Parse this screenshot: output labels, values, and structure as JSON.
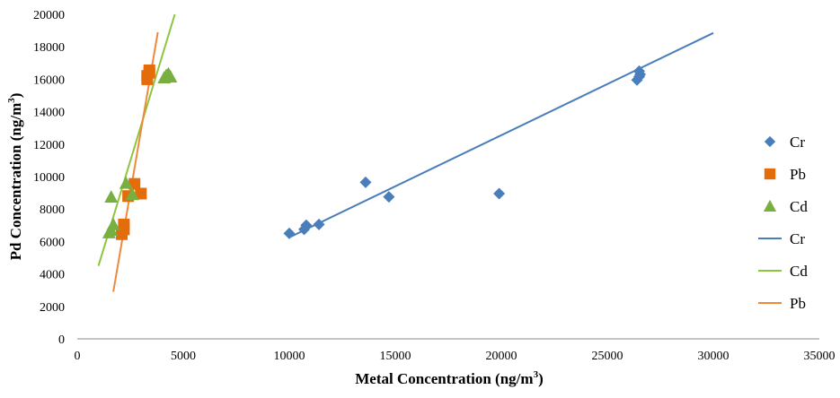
{
  "chart_data": {
    "type": "scatter",
    "xlabel": "Metal Concentration (ng/m",
    "xlabel_sup": "3",
    "xlabel_end": ")",
    "ylabel": "Pd Concentration (ng/m",
    "ylabel_sup": "3",
    "ylabel_end": ")",
    "xlim": [
      0,
      35000
    ],
    "ylim": [
      0,
      20000
    ],
    "xticks": [
      0,
      5000,
      10000,
      15000,
      20000,
      25000,
      30000,
      35000
    ],
    "yticks": [
      0,
      2000,
      4000,
      6000,
      8000,
      10000,
      12000,
      14000,
      16000,
      18000,
      20000
    ],
    "grid": false,
    "legend_position": "right",
    "series": [
      {
        "name": "Cr",
        "marker": "diamond",
        "color": "#4a7ebb",
        "points": [
          [
            10000,
            6500
          ],
          [
            10700,
            6750
          ],
          [
            10800,
            7000
          ],
          [
            11400,
            7050
          ],
          [
            13600,
            9650
          ],
          [
            14700,
            8750
          ],
          [
            19900,
            8950
          ],
          [
            26400,
            15950
          ],
          [
            26500,
            16150
          ],
          [
            26500,
            16500
          ],
          [
            26550,
            16300
          ]
        ]
      },
      {
        "name": "Pb",
        "marker": "square",
        "color": "#e46c0a",
        "points": [
          [
            2100,
            6450
          ],
          [
            2200,
            6750
          ],
          [
            2200,
            7050
          ],
          [
            2400,
            8800
          ],
          [
            2700,
            9550
          ],
          [
            3000,
            8950
          ],
          [
            3300,
            16000
          ],
          [
            3300,
            16200
          ],
          [
            3400,
            16400
          ],
          [
            3400,
            16550
          ]
        ]
      },
      {
        "name": "Cd",
        "marker": "triangle",
        "color": "#77b040",
        "points": [
          [
            1500,
            6550
          ],
          [
            1600,
            6700
          ],
          [
            1700,
            7050
          ],
          [
            1600,
            8750
          ],
          [
            2300,
            9600
          ],
          [
            2600,
            8900
          ],
          [
            4100,
            16100
          ],
          [
            4200,
            16250
          ],
          [
            4300,
            16350
          ],
          [
            4400,
            16150
          ]
        ]
      }
    ],
    "trendlines": [
      {
        "name": "Cr",
        "color": "#4a7ebb",
        "from": [
          10000,
          6250
        ],
        "to": [
          30000,
          18850
        ]
      },
      {
        "name": "Cd",
        "color": "#8cc63f",
        "from": [
          1000,
          4500
        ],
        "to": [
          4600,
          20000
        ]
      },
      {
        "name": "Pb",
        "color": "#f0883a",
        "from": [
          1700,
          2900
        ],
        "to": [
          3800,
          18900
        ]
      }
    ],
    "legend": [
      {
        "label": "Cr",
        "kind": "marker",
        "marker": "diamond",
        "color": "#4a7ebb"
      },
      {
        "label": "Pb",
        "kind": "marker",
        "marker": "square",
        "color": "#e46c0a"
      },
      {
        "label": "Cd",
        "kind": "marker",
        "marker": "triangle",
        "color": "#77b040"
      },
      {
        "label": "Cr",
        "kind": "line",
        "color": "#4a7ebb"
      },
      {
        "label": "Cd",
        "kind": "line",
        "color": "#8cc63f"
      },
      {
        "label": "Pb",
        "kind": "line",
        "color": "#f0883a"
      }
    ]
  }
}
